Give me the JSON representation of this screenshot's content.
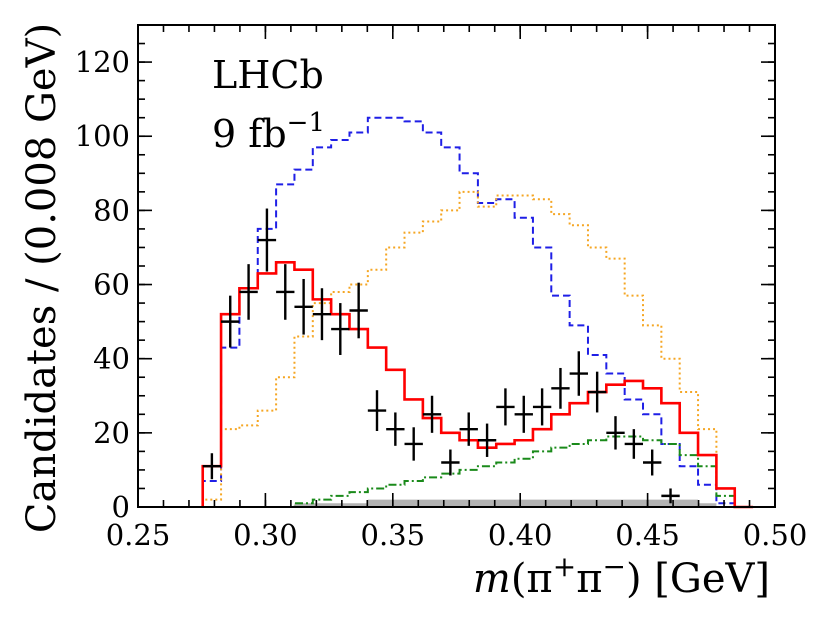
{
  "chart_data": {
    "type": "line",
    "annotations": [
      {
        "text": "LHCb"
      },
      {
        "text": "9 fb",
        "superscript": "−1"
      }
    ],
    "xlabel": {
      "italic": "m",
      "text": "(π",
      "sup1": "+",
      "mid": "π",
      "sup2": "−",
      "tail": ") [GeV]"
    },
    "ylabel": "Candidates / (0.008 GeV)",
    "xlim": [
      0.25,
      0.5
    ],
    "ylim": [
      0,
      130
    ],
    "xticks": [
      0.25,
      0.3,
      0.35,
      0.4,
      0.45,
      0.5
    ],
    "xtick_labels": [
      "0.25",
      "0.30",
      "0.35",
      "0.40",
      "0.45",
      "0.50"
    ],
    "yticks": [
      0,
      20,
      40,
      60,
      80,
      100,
      120
    ],
    "ytick_labels": [
      "0",
      "20",
      "40",
      "60",
      "80",
      "100",
      "120"
    ],
    "grid": false,
    "bin_edges": [
      0.2754,
      0.2826,
      0.2898,
      0.297,
      0.3042,
      0.3114,
      0.3186,
      0.3258,
      0.333,
      0.3402,
      0.3474,
      0.3546,
      0.3618,
      0.369,
      0.3762,
      0.3834,
      0.3906,
      0.3978,
      0.405,
      0.4122,
      0.4194,
      0.4266,
      0.4338,
      0.441,
      0.4482,
      0.4554,
      0.4626,
      0.4698,
      0.477,
      0.4842,
      0.4914
    ],
    "series": [
      {
        "style": "solid",
        "color": "#ff0000",
        "values": [
          11,
          52,
          59,
          63,
          66,
          64,
          56,
          52,
          48,
          43,
          37,
          29,
          24,
          20,
          18,
          16,
          17,
          18,
          21,
          25,
          28,
          31,
          33,
          34,
          32,
          28,
          20,
          14,
          5,
          0
        ]
      },
      {
        "style": "dashed",
        "color": "#1f1fe6",
        "values": [
          7,
          43,
          59,
          75,
          87,
          91,
          97,
          99,
          101,
          105,
          105,
          104,
          101,
          97,
          90,
          82,
          83,
          78,
          70,
          57,
          49,
          41,
          36,
          29,
          25,
          17,
          11,
          6,
          1,
          0
        ]
      },
      {
        "style": "dotted",
        "color": "#f5a623",
        "values": [
          2,
          21,
          22,
          26,
          35,
          46,
          55,
          58,
          60,
          64,
          70,
          74,
          77,
          80,
          85,
          81,
          84,
          84,
          83,
          79,
          76,
          70,
          67,
          57,
          49,
          40,
          31,
          21,
          5,
          0
        ]
      },
      {
        "style": "dashdot",
        "color": "#1a8a1a",
        "values": [
          0,
          0,
          0,
          0,
          0,
          1,
          2,
          3,
          4,
          5,
          6,
          7,
          8,
          9,
          10,
          11,
          12,
          13,
          15,
          16,
          17,
          18,
          19,
          19,
          18,
          17,
          14,
          11,
          3,
          0
        ]
      },
      {
        "style": "filled",
        "color": "#b3b3b3",
        "values": [
          0,
          0,
          0,
          0,
          0,
          1,
          1,
          1,
          1,
          2,
          2,
          2,
          2,
          2,
          2,
          2,
          2,
          2,
          2,
          2,
          2,
          2,
          2,
          2,
          2,
          2,
          2,
          1,
          0,
          0
        ]
      }
    ],
    "data_points": {
      "color": "#000000",
      "x": [
        0.279,
        0.2862,
        0.2934,
        0.3006,
        0.3078,
        0.315,
        0.3222,
        0.3294,
        0.3366,
        0.3438,
        0.351,
        0.3582,
        0.3654,
        0.3726,
        0.3798,
        0.387,
        0.3942,
        0.4014,
        0.4086,
        0.4158,
        0.423,
        0.4302,
        0.4374,
        0.4446,
        0.4518,
        0.459,
        0.4662,
        0.4734,
        0.4806,
        0.4878
      ],
      "y": [
        11,
        50,
        58,
        72,
        58,
        54,
        52,
        48,
        53,
        26,
        21,
        17,
        25,
        12,
        21,
        18,
        27,
        25,
        27,
        32,
        36,
        31,
        20,
        17,
        12,
        3,
        0,
        0,
        0,
        0
      ],
      "y_err": [
        3.5,
        7,
        7.5,
        8.5,
        7.5,
        7.5,
        7,
        7,
        7.5,
        5.5,
        4.5,
        4.5,
        5,
        3.5,
        4.5,
        4.5,
        5,
        5,
        5,
        5.5,
        6,
        5.5,
        4.5,
        4,
        3.5,
        2,
        0,
        0,
        0,
        0
      ],
      "x_halfwidth": 0.0036
    }
  }
}
